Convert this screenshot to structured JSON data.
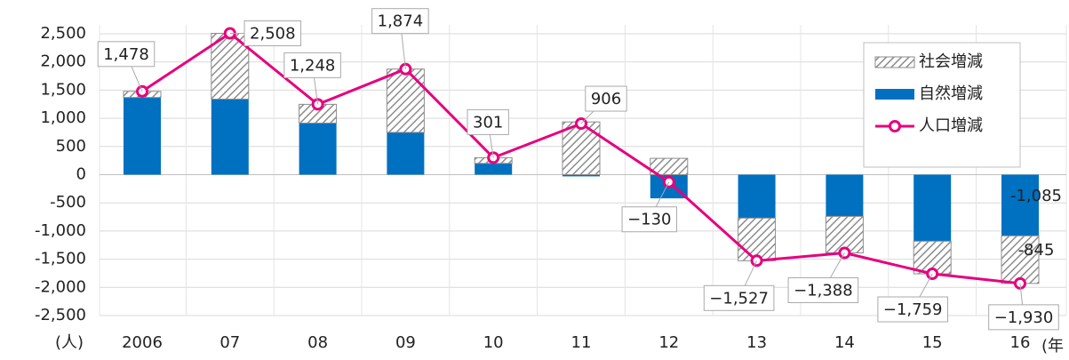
{
  "chart_data": {
    "type": "bar_line",
    "categories": [
      "2006",
      "07",
      "08",
      "09",
      "10",
      "11",
      "12",
      "13",
      "14",
      "15",
      "16"
    ],
    "series": [
      {
        "name": "社会増減",
        "type": "bar",
        "color": "#8c8c8c",
        "pattern": "hatch",
        "values": [
          108,
          1168,
          333,
          1124,
          101,
          936,
          290,
          -757,
          -648,
          -579,
          -845
        ],
        "value_labels": [
          null,
          null,
          null,
          null,
          null,
          null,
          null,
          null,
          null,
          null,
          "-845"
        ]
      },
      {
        "name": "自然増減",
        "type": "bar",
        "color": "#0070c0",
        "values": [
          1370,
          1340,
          915,
          750,
          200,
          -30,
          -420,
          -770,
          -740,
          -1180,
          -1085
        ],
        "value_labels": [
          null,
          null,
          null,
          null,
          null,
          null,
          null,
          null,
          null,
          null,
          "-1,085"
        ]
      },
      {
        "name": "人口増減",
        "type": "line",
        "color": "#e6007e",
        "values": [
          1478,
          2508,
          1248,
          1874,
          301,
          906,
          -130,
          -1527,
          -1388,
          -1759,
          -1930
        ],
        "value_labels": [
          "1,478",
          "2,508",
          "1,248",
          "1,874",
          "301",
          "906",
          "−130",
          "−1,527",
          "−1,388",
          "−1,759",
          "−1,930"
        ]
      }
    ],
    "ylim": [
      -2500,
      2500
    ],
    "yticks": [
      {
        "value": -2500,
        "label": "-2,500"
      },
      {
        "value": -2000,
        "label": "-2,000"
      },
      {
        "value": -1500,
        "label": "-1,500"
      },
      {
        "value": -1000,
        "label": "-1,000"
      },
      -500,
      0,
      500,
      {
        "value": 1000,
        "label": "1,000"
      },
      {
        "value": 1500,
        "label": "1,500"
      },
      {
        "value": 2000,
        "label": "2,000"
      },
      {
        "value": 2500,
        "label": "2,500"
      }
    ],
    "y_label": "(人)",
    "x_label": "(年",
    "grid": true,
    "legend": "upper right"
  }
}
